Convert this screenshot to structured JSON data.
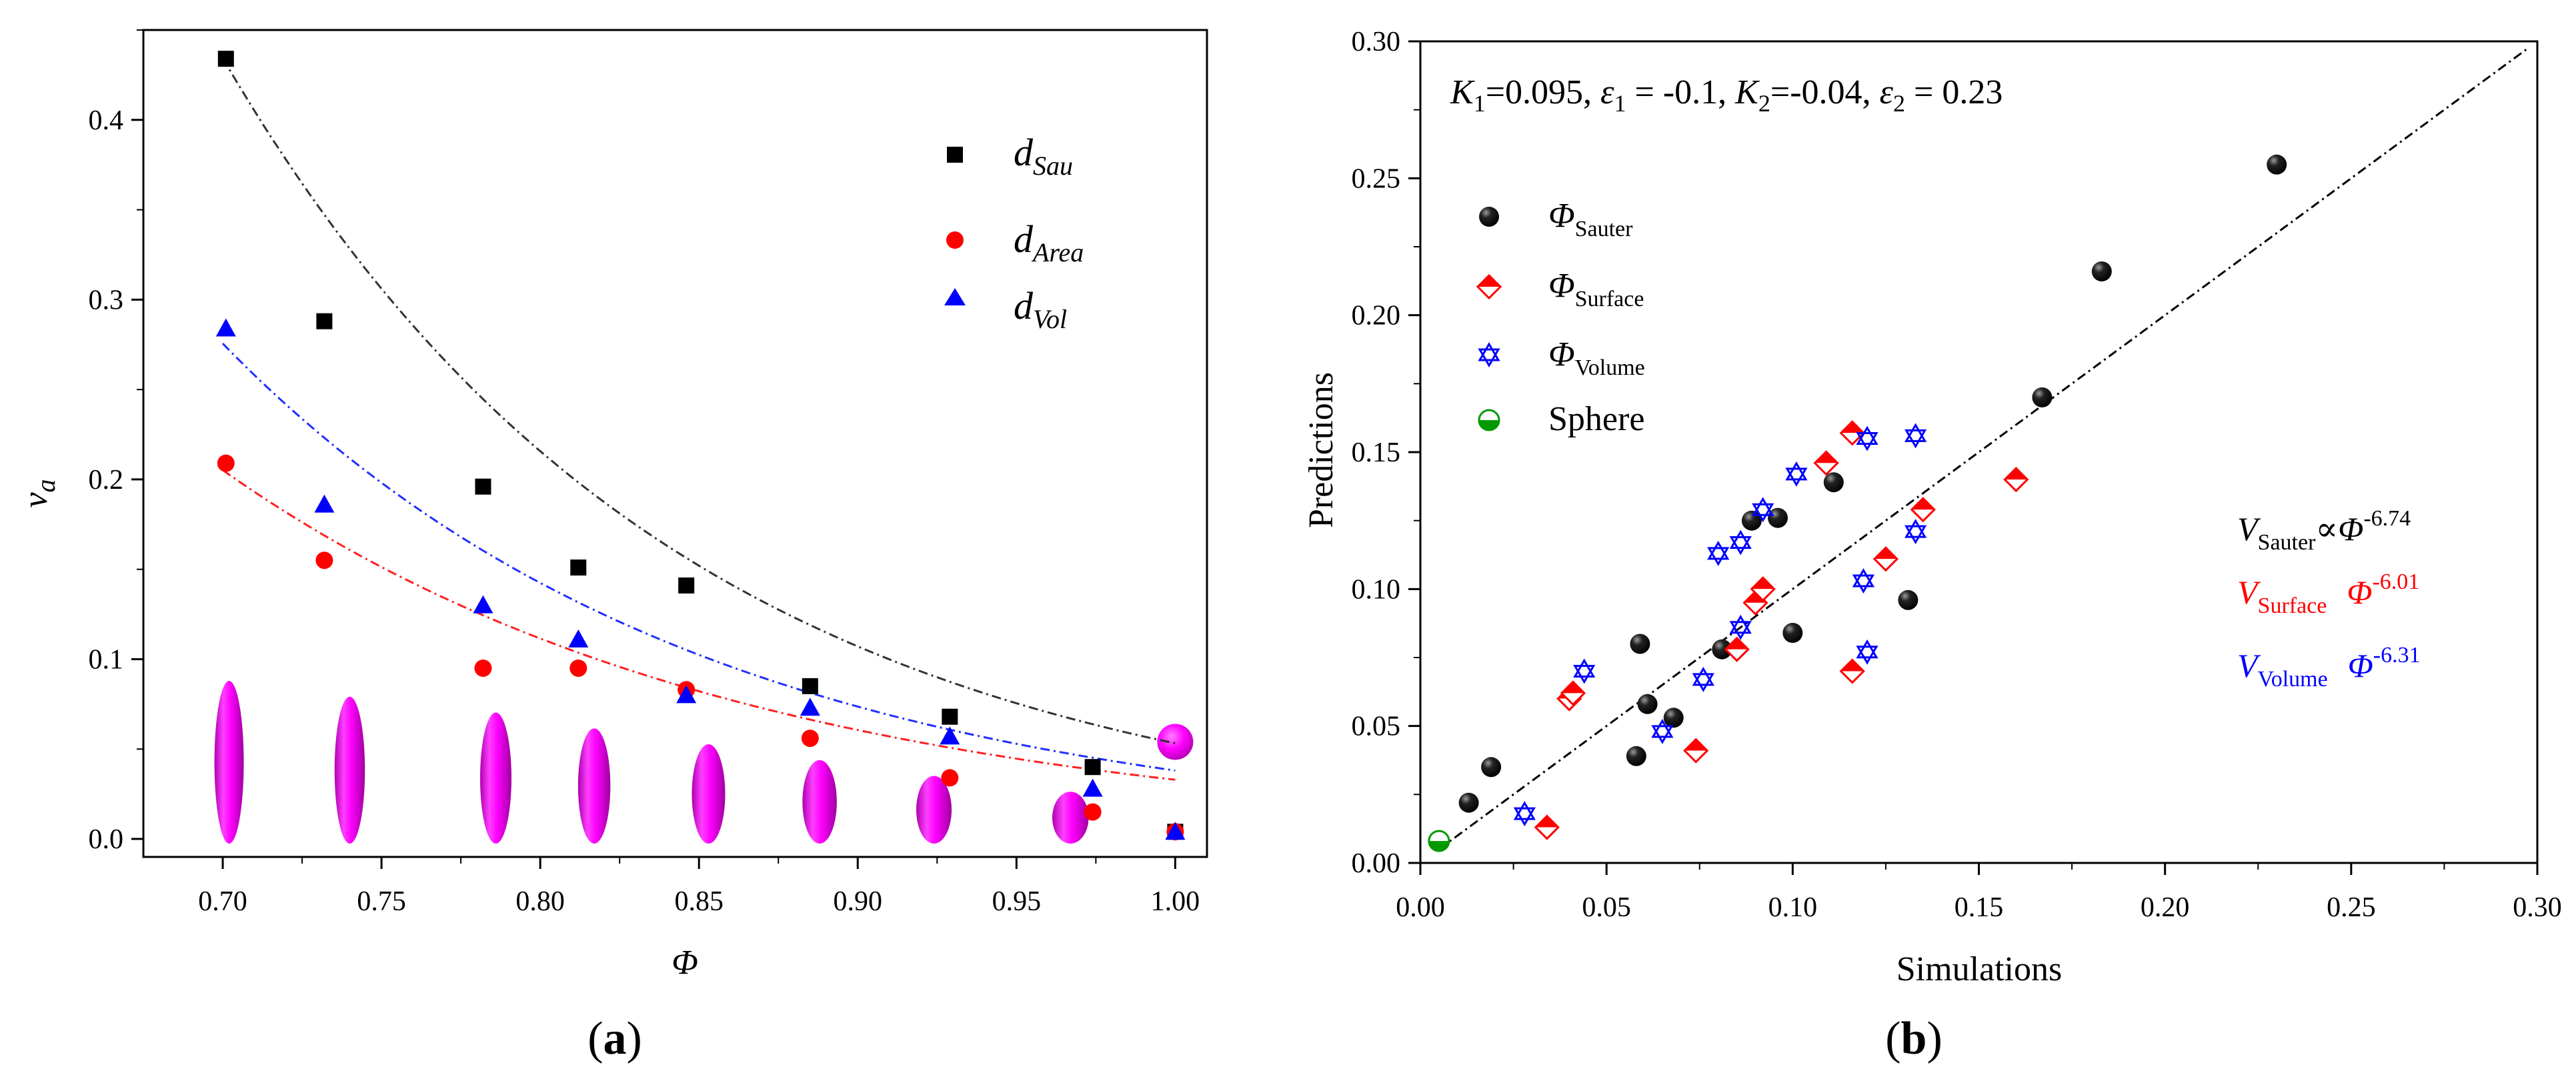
{
  "figure": {
    "caption_a": "a",
    "caption_b": "b"
  },
  "chart_data": [
    {
      "id": "a",
      "type": "scatter",
      "title": "",
      "xlabel": "Φ",
      "ylabel": "v",
      "ylabel_sub": "a",
      "xlim": [
        0.675,
        1.01
      ],
      "ylim": [
        -0.01,
        0.45
      ],
      "x_ticks": [
        0.7,
        0.75,
        0.8,
        0.85,
        0.9,
        0.95,
        1.0
      ],
      "x_tick_labels": [
        "0.70",
        "0.75",
        "0.80",
        "0.85",
        "0.90",
        "0.95",
        "1.00"
      ],
      "y_ticks": [
        0.0,
        0.1,
        0.2,
        0.3,
        0.4
      ],
      "y_tick_labels": [
        "0.0",
        "0.1",
        "0.2",
        "0.3",
        "0.4"
      ],
      "grid": false,
      "legend": "top-right",
      "series": [
        {
          "name": "d",
          "name_sub": "Sau",
          "marker": "square",
          "color": "#000000",
          "x": [
            0.701,
            0.732,
            0.782,
            0.812,
            0.846,
            0.885,
            0.929,
            0.974,
            1.0
          ],
          "y": [
            0.434,
            0.288,
            0.196,
            0.151,
            0.141,
            0.085,
            0.068,
            0.04,
            0.004
          ],
          "fit": {
            "a": 0.4344,
            "b": 7.0,
            "color": "#333333"
          }
        },
        {
          "name": "d",
          "name_sub": "Area",
          "marker": "circle",
          "color": "#ff0000",
          "x": [
            0.701,
            0.732,
            0.782,
            0.812,
            0.846,
            0.885,
            0.929,
            0.974,
            1.0
          ],
          "y": [
            0.209,
            0.155,
            0.095,
            0.095,
            0.083,
            0.056,
            0.034,
            0.015,
            0.004
          ],
          "fit": {
            "a": 0.2052,
            "b": 6.1,
            "color": "#ff2020"
          }
        },
        {
          "name": "d",
          "name_sub": "Vol",
          "marker": "triangle",
          "color": "#0000ff",
          "x": [
            0.701,
            0.732,
            0.782,
            0.812,
            0.846,
            0.885,
            0.929,
            0.974,
            1.0
          ],
          "y": [
            0.284,
            0.186,
            0.13,
            0.111,
            0.08,
            0.073,
            0.057,
            0.028,
            0.004
          ],
          "fit": {
            "a": 0.2756,
            "b": 6.6,
            "color": "#2030ff"
          }
        }
      ],
      "particle_shapes": {
        "color": "#ff00ff",
        "x": [
          0.702,
          0.74,
          0.786,
          0.817,
          0.853,
          0.888,
          0.924,
          0.967,
          1.0
        ]
      }
    },
    {
      "id": "b",
      "type": "scatter",
      "title": "",
      "xlabel": "Simulations",
      "ylabel": "Predictions",
      "xlim": [
        0.0,
        0.3
      ],
      "ylim": [
        0.0,
        0.3
      ],
      "x_ticks": [
        0.0,
        0.05,
        0.1,
        0.15,
        0.2,
        0.25,
        0.3
      ],
      "x_tick_labels": [
        "0.00",
        "0.05",
        "0.10",
        "0.15",
        "0.20",
        "0.25",
        "0.30"
      ],
      "y_ticks": [
        0.0,
        0.05,
        0.1,
        0.15,
        0.2,
        0.25,
        0.3
      ],
      "y_tick_labels": [
        "0.00",
        "0.05",
        "0.10",
        "0.15",
        "0.20",
        "0.25",
        "0.30"
      ],
      "grid": false,
      "legend": "upper-left",
      "reference_line": {
        "x": [
          0.005,
          0.297
        ],
        "y": [
          0.005,
          0.297
        ]
      },
      "annotation": {
        "K1": "0.095",
        "e1": "-0.1",
        "K2": "-0.04",
        "e2": "0.23"
      },
      "relations": [
        {
          "v": "V",
          "sub": "Sauter",
          "rel": "∝",
          "base": "Φ",
          "exp": "-6.74",
          "color": "#000000"
        },
        {
          "v": "V",
          "sub": "Surface",
          "rel": "",
          "base": "Φ",
          "exp": "-6.01",
          "color": "#ff0000"
        },
        {
          "v": "V",
          "sub": "Volume",
          "rel": "",
          "base": "Φ",
          "exp": "-6.31",
          "color": "#0000ff"
        }
      ],
      "series": [
        {
          "name": "Φ",
          "name_sub": "Sauter",
          "marker": "sphere",
          "color": "#000000",
          "x": [
            0.013,
            0.019,
            0.058,
            0.059,
            0.061,
            0.068,
            0.081,
            0.089,
            0.096,
            0.1,
            0.111,
            0.131,
            0.167,
            0.183,
            0.23
          ],
          "y": [
            0.022,
            0.035,
            0.039,
            0.08,
            0.058,
            0.053,
            0.078,
            0.125,
            0.126,
            0.084,
            0.139,
            0.096,
            0.17,
            0.216,
            0.255
          ]
        },
        {
          "name": "Φ",
          "name_sub": "Surface",
          "marker": "half-diamond",
          "color": "#ff0000",
          "x": [
            0.034,
            0.04,
            0.041,
            0.074,
            0.085,
            0.09,
            0.092,
            0.109,
            0.116,
            0.116,
            0.125,
            0.135,
            0.16
          ],
          "y": [
            0.013,
            0.06,
            0.062,
            0.041,
            0.078,
            0.095,
            0.1,
            0.146,
            0.157,
            0.07,
            0.111,
            0.129,
            0.14
          ]
        },
        {
          "name": "Φ",
          "name_sub": "Volume",
          "marker": "star",
          "color": "#0000ff",
          "x": [
            0.028,
            0.044,
            0.065,
            0.076,
            0.08,
            0.086,
            0.086,
            0.092,
            0.101,
            0.119,
            0.12,
            0.12,
            0.133,
            0.133
          ],
          "y": [
            0.018,
            0.07,
            0.048,
            0.067,
            0.113,
            0.086,
            0.117,
            0.129,
            0.142,
            0.103,
            0.155,
            0.077,
            0.156,
            0.121
          ]
        },
        {
          "name": "Sphere",
          "marker": "half-circle",
          "color": "#009900",
          "x": [
            0.005
          ],
          "y": [
            0.008
          ]
        }
      ]
    }
  ]
}
